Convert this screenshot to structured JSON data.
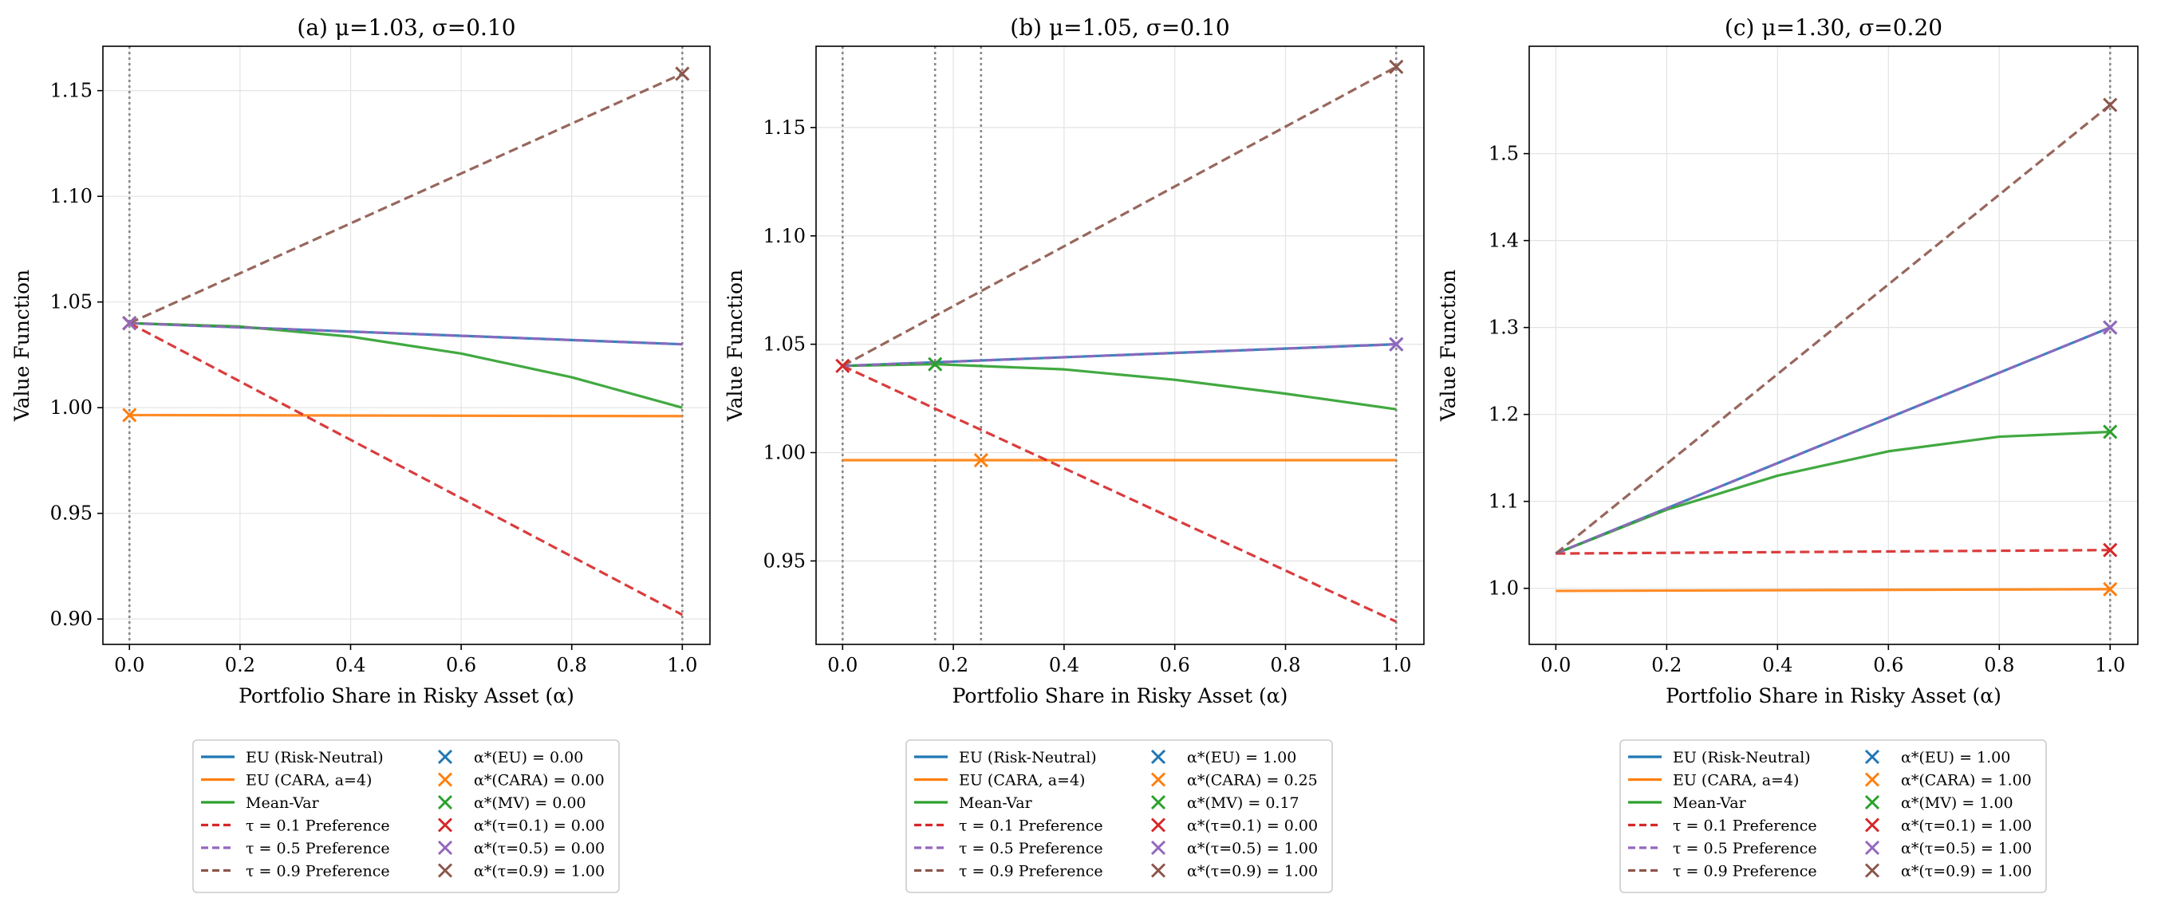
{
  "chart_data": [
    {
      "type": "line",
      "title": "(a) μ=1.03, σ=0.10",
      "xlabel": "Portfolio Share in Risky Asset (α)",
      "ylabel": "Value Function",
      "xlim": [
        -0.048,
        1.05
      ],
      "ylim": [
        0.888,
        1.171
      ],
      "xticks": [
        0.0,
        0.2,
        0.4,
        0.6,
        0.8,
        1.0
      ],
      "xtick_labels": [
        "0.0",
        "0.2",
        "0.4",
        "0.6",
        "0.8",
        "1.0"
      ],
      "yticks": [
        0.9,
        0.95,
        1.0,
        1.05,
        1.1,
        1.15
      ],
      "ytick_labels": [
        "0.90",
        "0.95",
        "1.00",
        "1.05",
        "1.10",
        "1.15"
      ],
      "vlines": [
        0.0,
        1.0
      ],
      "series": [
        {
          "name": "EU (Risk-Neutral)",
          "style": "solid",
          "color": "#1f77b4",
          "x": [
            0,
            1
          ],
          "y": [
            1.04,
            1.03
          ]
        },
        {
          "name": "EU (CARA, a=4)",
          "style": "solid",
          "color": "#ff7f0e",
          "x": [
            0,
            1
          ],
          "y": [
            0.9965,
            0.996
          ]
        },
        {
          "name": "Mean-Var",
          "style": "solid",
          "color": "#2ca02c",
          "x": [
            0,
            0.2,
            0.4,
            0.6,
            0.8,
            1.0
          ],
          "y": [
            1.04,
            1.0384,
            1.0336,
            1.0256,
            1.0144,
            1.0
          ]
        },
        {
          "name": "τ = 0.1 Preference",
          "style": "dashed",
          "color": "#d62728",
          "x": [
            0,
            1
          ],
          "y": [
            1.04,
            0.902
          ]
        },
        {
          "name": "τ = 0.5 Preference",
          "style": "dashed",
          "color": "#9467bd",
          "x": [
            0,
            1
          ],
          "y": [
            1.04,
            1.03
          ]
        },
        {
          "name": "τ = 0.9 Preference",
          "style": "dashed",
          "color": "#8c564b",
          "x": [
            0,
            1
          ],
          "y": [
            1.04,
            1.158
          ]
        }
      ],
      "markers": [
        {
          "label": "α*(EU) = 0.00",
          "color": "#1f77b4",
          "x": 0.0,
          "y": 1.04
        },
        {
          "label": "α*(CARA) = 0.00",
          "color": "#ff7f0e",
          "x": 0.0,
          "y": 0.9965
        },
        {
          "label": "α*(MV) = 0.00",
          "color": "#2ca02c",
          "x": 0.0,
          "y": 1.04
        },
        {
          "label": "α*(τ=0.1) = 0.00",
          "color": "#d62728",
          "x": 0.0,
          "y": 1.04
        },
        {
          "label": "α*(τ=0.5) = 0.00",
          "color": "#9467bd",
          "x": 0.0,
          "y": 1.04
        },
        {
          "label": "α*(τ=0.9) = 1.00",
          "color": "#8c564b",
          "x": 1.0,
          "y": 1.158
        }
      ]
    },
    {
      "type": "line",
      "title": "(b) μ=1.05, σ=0.10",
      "xlabel": "Portfolio Share in Risky Asset (α)",
      "ylabel": "Value Function",
      "xlim": [
        -0.048,
        1.05
      ],
      "ylim": [
        0.9115,
        1.1875
      ],
      "xticks": [
        0.0,
        0.2,
        0.4,
        0.6,
        0.8,
        1.0
      ],
      "xtick_labels": [
        "0.0",
        "0.2",
        "0.4",
        "0.6",
        "0.8",
        "1.0"
      ],
      "yticks": [
        0.95,
        1.0,
        1.05,
        1.1,
        1.15
      ],
      "ytick_labels": [
        "0.95",
        "1.00",
        "1.05",
        "1.10",
        "1.15"
      ],
      "vlines": [
        0.0,
        0.167,
        0.25,
        1.0
      ],
      "series": [
        {
          "name": "EU (Risk-Neutral)",
          "style": "solid",
          "color": "#1f77b4",
          "x": [
            0,
            1
          ],
          "y": [
            1.04,
            1.05
          ]
        },
        {
          "name": "EU (CARA, a=4)",
          "style": "solid",
          "color": "#ff7f0e",
          "x": [
            0,
            1
          ],
          "y": [
            0.9965,
            0.9965
          ]
        },
        {
          "name": "Mean-Var",
          "style": "solid",
          "color": "#2ca02c",
          "x": [
            0,
            0.167,
            0.4,
            0.6,
            0.8,
            1.0
          ],
          "y": [
            1.04,
            1.0408,
            1.0384,
            1.0336,
            1.0272,
            1.02
          ]
        },
        {
          "name": "τ = 0.1 Preference",
          "style": "dashed",
          "color": "#d62728",
          "x": [
            0,
            1
          ],
          "y": [
            1.04,
            0.922
          ]
        },
        {
          "name": "τ = 0.5 Preference",
          "style": "dashed",
          "color": "#9467bd",
          "x": [
            0,
            1
          ],
          "y": [
            1.04,
            1.05
          ]
        },
        {
          "name": "τ = 0.9 Preference",
          "style": "dashed",
          "color": "#8c564b",
          "x": [
            0,
            1
          ],
          "y": [
            1.04,
            1.178
          ]
        }
      ],
      "markers": [
        {
          "label": "α*(EU) = 1.00",
          "color": "#1f77b4",
          "x": 1.0,
          "y": 1.05
        },
        {
          "label": "α*(CARA) = 0.25",
          "color": "#ff7f0e",
          "x": 0.25,
          "y": 0.9965
        },
        {
          "label": "α*(MV) = 0.17",
          "color": "#2ca02c",
          "x": 0.167,
          "y": 1.0408
        },
        {
          "label": "α*(τ=0.1) = 0.00",
          "color": "#d62728",
          "x": 0.0,
          "y": 1.04
        },
        {
          "label": "α*(τ=0.5) = 1.00",
          "color": "#9467bd",
          "x": 1.0,
          "y": 1.05
        },
        {
          "label": "α*(τ=0.9) = 1.00",
          "color": "#8c564b",
          "x": 1.0,
          "y": 1.178
        }
      ]
    },
    {
      "type": "line",
      "title": "(c) μ=1.30, σ=0.20",
      "xlabel": "Portfolio Share in Risky Asset (α)",
      "ylabel": "Value Function",
      "xlim": [
        -0.048,
        1.05
      ],
      "ylim": [
        0.9355,
        1.6235
      ],
      "xticks": [
        0.0,
        0.2,
        0.4,
        0.6,
        0.8,
        1.0
      ],
      "xtick_labels": [
        "0.0",
        "0.2",
        "0.4",
        "0.6",
        "0.8",
        "1.0"
      ],
      "yticks": [
        1.0,
        1.1,
        1.2,
        1.3,
        1.4,
        1.5
      ],
      "ytick_labels": [
        "1.0",
        "1.1",
        "1.2",
        "1.3",
        "1.4",
        "1.5"
      ],
      "vlines": [
        1.0
      ],
      "series": [
        {
          "name": "EU (Risk-Neutral)",
          "style": "solid",
          "color": "#1f77b4",
          "x": [
            0,
            1
          ],
          "y": [
            1.04,
            1.3
          ]
        },
        {
          "name": "EU (CARA, a=4)",
          "style": "solid",
          "color": "#ff7f0e",
          "x": [
            0,
            0.5,
            1
          ],
          "y": [
            0.997,
            0.998,
            0.999
          ]
        },
        {
          "name": "Mean-Var",
          "style": "solid",
          "color": "#2ca02c",
          "x": [
            0,
            0.2,
            0.4,
            0.6,
            0.8,
            1.0
          ],
          "y": [
            1.04,
            1.0904,
            1.1296,
            1.1576,
            1.1744,
            1.18
          ]
        },
        {
          "name": "τ = 0.1 Preference",
          "style": "dashed",
          "color": "#d62728",
          "x": [
            0,
            1
          ],
          "y": [
            1.04,
            1.044
          ]
        },
        {
          "name": "τ = 0.5 Preference",
          "style": "dashed",
          "color": "#9467bd",
          "x": [
            0,
            1
          ],
          "y": [
            1.04,
            1.3
          ]
        },
        {
          "name": "τ = 0.9 Preference",
          "style": "dashed",
          "color": "#8c564b",
          "x": [
            0,
            1
          ],
          "y": [
            1.04,
            1.556
          ]
        }
      ],
      "markers": [
        {
          "label": "α*(EU) = 1.00",
          "color": "#1f77b4",
          "x": 1.0,
          "y": 1.3
        },
        {
          "label": "α*(CARA) = 1.00",
          "color": "#ff7f0e",
          "x": 1.0,
          "y": 0.999
        },
        {
          "label": "α*(MV) = 1.00",
          "color": "#2ca02c",
          "x": 1.0,
          "y": 1.18
        },
        {
          "label": "α*(τ=0.1) = 1.00",
          "color": "#d62728",
          "x": 1.0,
          "y": 1.044
        },
        {
          "label": "α*(τ=0.5) = 1.00",
          "color": "#9467bd",
          "x": 1.0,
          "y": 1.3
        },
        {
          "label": "α*(τ=0.9) = 1.00",
          "color": "#8c564b",
          "x": 1.0,
          "y": 1.556
        }
      ]
    }
  ]
}
